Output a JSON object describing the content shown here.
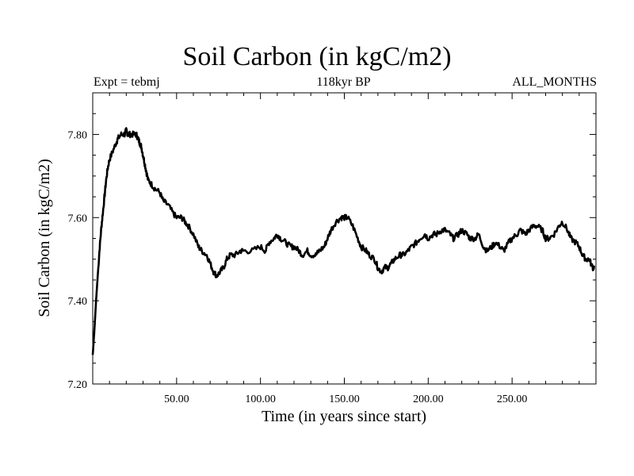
{
  "chart_data": {
    "type": "line",
    "title": "Soil Carbon (in kgC/m2)",
    "subtitle_left": "Expt = tebmj",
    "subtitle_center": "118kyr BP",
    "subtitle_right": "ALL_MONTHS",
    "xlabel": "Time (in years since start)",
    "ylabel": "Soil Carbon (in kgC/m2)",
    "xlim": [
      0,
      300
    ],
    "ylim": [
      7.2,
      7.9
    ],
    "x_ticks": [
      50,
      100,
      150,
      200,
      250
    ],
    "x_tick_labels": [
      "50.00",
      "100.00",
      "150.00",
      "200.00",
      "250.00"
    ],
    "y_ticks": [
      7.2,
      7.4,
      7.6,
      7.8
    ],
    "y_tick_labels": [
      "7.20",
      "7.40",
      "7.60",
      "7.80"
    ],
    "series": [
      {
        "name": "Soil Carbon",
        "color": "#000000",
        "x": [
          0,
          1,
          2,
          3,
          4,
          5,
          6,
          7,
          8,
          9,
          10,
          12,
          14,
          15,
          17,
          19,
          20,
          21,
          22,
          24,
          26,
          27,
          28,
          29,
          30,
          31,
          32,
          33,
          35,
          37,
          40,
          42,
          45,
          48,
          50,
          53,
          55,
          57,
          60,
          63,
          65,
          68,
          70,
          72,
          74,
          76,
          78,
          80,
          82,
          85,
          88,
          90,
          95,
          100,
          103,
          105,
          108,
          110,
          112,
          115,
          118,
          120,
          123,
          125,
          128,
          130,
          133,
          135,
          138,
          140,
          142,
          145,
          148,
          150,
          152,
          155,
          158,
          160,
          163,
          165,
          168,
          170,
          172,
          174,
          176,
          178,
          180,
          183,
          185,
          188,
          190,
          193,
          195,
          198,
          200,
          203,
          205,
          208,
          210,
          213,
          215,
          218,
          220,
          223,
          225,
          228,
          230,
          233,
          235,
          238,
          240,
          243,
          245,
          248,
          250,
          253,
          255,
          258,
          260,
          263,
          265,
          268,
          270,
          272,
          275,
          278,
          280,
          283,
          285,
          288,
          290,
          292,
          294,
          296,
          298,
          299
        ],
        "y": [
          7.27,
          7.33,
          7.4,
          7.46,
          7.52,
          7.57,
          7.61,
          7.65,
          7.69,
          7.72,
          7.74,
          7.76,
          7.78,
          7.79,
          7.8,
          7.8,
          7.81,
          7.8,
          7.8,
          7.8,
          7.8,
          7.79,
          7.78,
          7.77,
          7.75,
          7.73,
          7.71,
          7.69,
          7.68,
          7.67,
          7.66,
          7.64,
          7.63,
          7.61,
          7.6,
          7.6,
          7.59,
          7.58,
          7.56,
          7.53,
          7.52,
          7.51,
          7.49,
          7.47,
          7.46,
          7.47,
          7.48,
          7.5,
          7.51,
          7.51,
          7.52,
          7.52,
          7.52,
          7.53,
          7.52,
          7.54,
          7.55,
          7.56,
          7.55,
          7.54,
          7.53,
          7.53,
          7.52,
          7.51,
          7.52,
          7.51,
          7.51,
          7.52,
          7.53,
          7.55,
          7.57,
          7.59,
          7.6,
          7.6,
          7.6,
          7.58,
          7.55,
          7.53,
          7.52,
          7.51,
          7.5,
          7.48,
          7.47,
          7.48,
          7.48,
          7.49,
          7.5,
          7.51,
          7.51,
          7.52,
          7.53,
          7.54,
          7.55,
          7.56,
          7.55,
          7.56,
          7.56,
          7.57,
          7.57,
          7.56,
          7.55,
          7.56,
          7.57,
          7.56,
          7.55,
          7.55,
          7.56,
          7.53,
          7.52,
          7.53,
          7.54,
          7.53,
          7.52,
          7.54,
          7.55,
          7.56,
          7.57,
          7.56,
          7.57,
          7.58,
          7.58,
          7.57,
          7.55,
          7.55,
          7.56,
          7.58,
          7.59,
          7.57,
          7.55,
          7.54,
          7.53,
          7.51,
          7.5,
          7.5,
          7.48,
          7.48
        ]
      }
    ]
  }
}
